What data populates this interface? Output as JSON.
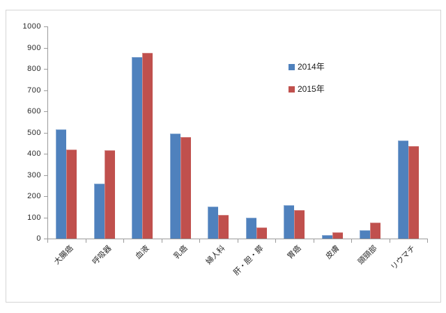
{
  "chart_data": {
    "type": "bar",
    "title": "",
    "xlabel": "",
    "ylabel": "",
    "categories": [
      "大腸癌",
      "呼吸器",
      "血液",
      "乳癌",
      "婦人科",
      "肝・胆・膵",
      "胃癌",
      "皮膚",
      "頭頸部",
      "リウマチ"
    ],
    "series": [
      {
        "name": "2014年",
        "color": "#4F81BD",
        "values": [
          515,
          260,
          855,
          495,
          150,
          100,
          158,
          15,
          40,
          463
        ]
      },
      {
        "name": "2015年",
        "color": "#C0504D",
        "values": [
          420,
          415,
          875,
          480,
          112,
          54,
          133,
          28,
          75,
          437
        ]
      }
    ],
    "ylim": [
      0,
      1000
    ],
    "yticks": [
      0,
      100,
      200,
      300,
      400,
      500,
      600,
      700,
      800,
      900,
      1000
    ],
    "grid": false,
    "legend": {
      "position": "inside-right",
      "entries": [
        "2014年",
        "2015年"
      ]
    }
  },
  "colors": {
    "background": "#FFFFFF",
    "chart_border": "#D5D5D5",
    "axis": "#9A9A9A",
    "tick_text": "#262626",
    "legend_text": "#1A1A1A",
    "series_2014": "#4F81BD",
    "series_2015": "#C0504D"
  }
}
